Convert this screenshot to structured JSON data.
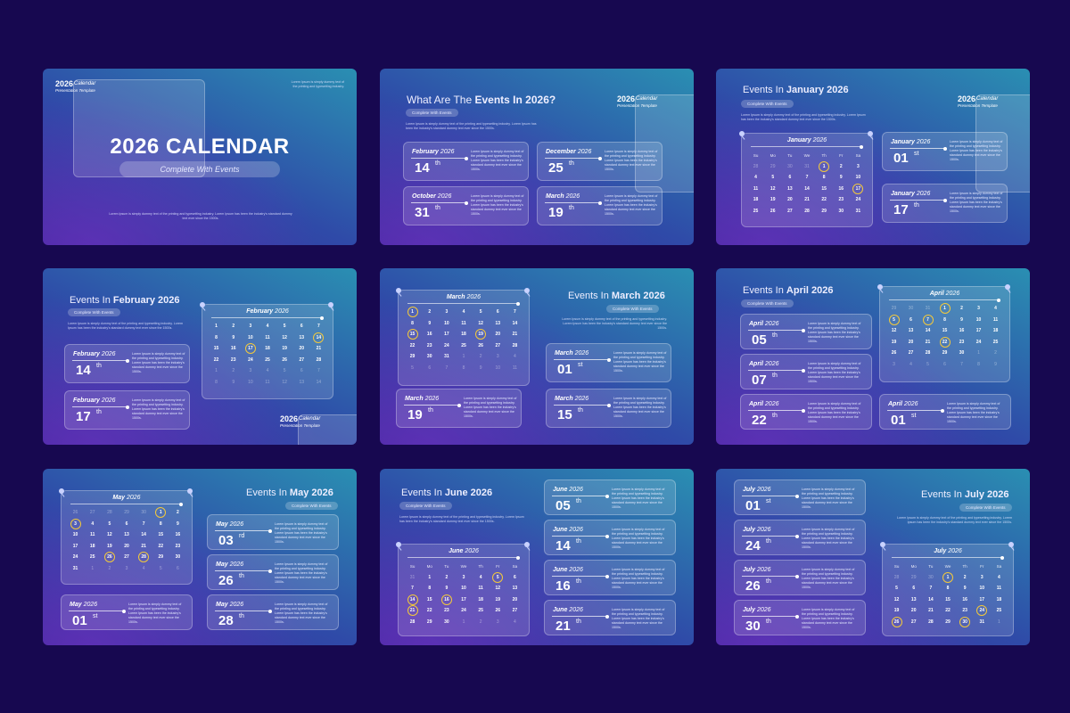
{
  "lorem": "Lorem Ipsum is simply dummy text of the printing and typesetting industry. Lorem Ipsum has been the industry's standard dummy text ever since the 1500s.",
  "brand": {
    "year": "2026",
    "calendar": "Calendar",
    "sub": "Presentation Template"
  },
  "subtitle": "Complete With Events",
  "weekdays": [
    "Su",
    "Mo",
    "Tu",
    "We",
    "Th",
    "Fr",
    "Sa"
  ],
  "cover": {
    "title": "2026 CALENDAR",
    "pill": "Complete With Events",
    "top_text": "Lorem Ipsum is simply dummy text of the printing and typesetting industry."
  },
  "overview": {
    "title_a": "What Are The ",
    "title_b": "Events In 2026?",
    "pill": "Complete With Events",
    "cards": [
      {
        "month": "February",
        "year": "2026",
        "day": "14",
        "suffix": "th"
      },
      {
        "month": "December",
        "year": "2026",
        "day": "25",
        "suffix": "th"
      },
      {
        "month": "October",
        "year": "2026",
        "day": "31",
        "suffix": "th"
      },
      {
        "month": "March",
        "year": "2026",
        "day": "19",
        "suffix": "th"
      }
    ]
  },
  "months": {
    "jan": {
      "title_a": "Events In ",
      "title_b": "January 2026",
      "name": "January",
      "year": "2026",
      "cards": [
        {
          "day": "01",
          "suffix": "st"
        },
        {
          "day": "17",
          "suffix": "th"
        }
      ]
    },
    "feb": {
      "title_a": "Events In ",
      "title_b": "February 2026",
      "name": "February",
      "year": "2026",
      "cards": [
        {
          "day": "14",
          "suffix": "th"
        },
        {
          "day": "17",
          "suffix": "th"
        }
      ]
    },
    "mar": {
      "title_a": "Events In ",
      "title_b": "March 2026",
      "name": "March",
      "year": "2026",
      "cards": [
        {
          "day": "01",
          "suffix": "st"
        },
        {
          "day": "19",
          "suffix": "th"
        },
        {
          "day": "15",
          "suffix": "th"
        }
      ]
    },
    "apr": {
      "title_a": "Events In ",
      "title_b": "April 2026",
      "name": "April",
      "year": "2026",
      "cards": [
        {
          "day": "05",
          "suffix": "th"
        },
        {
          "day": "07",
          "suffix": "th"
        },
        {
          "day": "22",
          "suffix": "th"
        },
        {
          "day": "01",
          "suffix": "st"
        }
      ]
    },
    "may": {
      "title_a": "Events In ",
      "title_b": "May 2026",
      "name": "May",
      "year": "2026",
      "cards": [
        {
          "day": "03",
          "suffix": "rd"
        },
        {
          "day": "26",
          "suffix": "th"
        },
        {
          "day": "28",
          "suffix": "th"
        },
        {
          "day": "01",
          "suffix": "st"
        }
      ]
    },
    "jun": {
      "title_a": "Events In ",
      "title_b": "June 2026",
      "name": "June",
      "year": "2026",
      "cards": [
        {
          "day": "05",
          "suffix": "th"
        },
        {
          "day": "14",
          "suffix": "th"
        },
        {
          "day": "16",
          "suffix": "th"
        },
        {
          "day": "21",
          "suffix": "th"
        }
      ]
    },
    "jul": {
      "title_a": "Events In ",
      "title_b": "July 2026",
      "name": "July",
      "year": "2026",
      "cards": [
        {
          "day": "01",
          "suffix": "st"
        },
        {
          "day": "24",
          "suffix": "th"
        },
        {
          "day": "26",
          "suffix": "th"
        },
        {
          "day": "30",
          "suffix": "th"
        }
      ]
    }
  },
  "calendars": {
    "jan": {
      "cells": [
        "28",
        "29",
        "30",
        "31",
        "1",
        "2",
        "3",
        "4",
        "5",
        "6",
        "7",
        "8",
        "9",
        "10",
        "11",
        "12",
        "13",
        "14",
        "15",
        "16",
        "17",
        "18",
        "19",
        "20",
        "21",
        "22",
        "23",
        "24",
        "25",
        "26",
        "27",
        "28",
        "29",
        "30",
        "31"
      ],
      "dim": [
        0,
        1,
        2,
        3
      ],
      "hl": [
        4,
        20
      ]
    },
    "feb": {
      "cells": [
        "1",
        "2",
        "3",
        "4",
        "5",
        "6",
        "7",
        "8",
        "9",
        "10",
        "11",
        "12",
        "13",
        "14",
        "15",
        "16",
        "17",
        "18",
        "19",
        "20",
        "21",
        "22",
        "23",
        "24",
        "25",
        "26",
        "27",
        "28",
        "1",
        "2",
        "3",
        "4",
        "5",
        "6",
        "7",
        "8",
        "9",
        "10",
        "11",
        "12",
        "13",
        "14"
      ],
      "dim": [
        28,
        29,
        30,
        31,
        32,
        33,
        34,
        35,
        36,
        37,
        38,
        39,
        40,
        41
      ],
      "hl": [
        13,
        16
      ]
    },
    "mar": {
      "cells": [
        "1",
        "2",
        "3",
        "4",
        "5",
        "6",
        "7",
        "8",
        "9",
        "10",
        "11",
        "12",
        "13",
        "14",
        "15",
        "16",
        "17",
        "18",
        "19",
        "20",
        "21",
        "22",
        "23",
        "24",
        "25",
        "26",
        "27",
        "28",
        "29",
        "30",
        "31",
        "1",
        "2",
        "3",
        "4",
        "5",
        "6",
        "7",
        "8",
        "9",
        "10",
        "11"
      ],
      "dim": [
        31,
        32,
        33,
        34,
        35,
        36,
        37,
        38,
        39,
        40,
        41
      ],
      "hl": [
        0,
        14,
        18
      ]
    },
    "apr": {
      "cells": [
        "29",
        "30",
        "31",
        "1",
        "2",
        "3",
        "4",
        "5",
        "6",
        "7",
        "8",
        "9",
        "10",
        "11",
        "12",
        "13",
        "14",
        "15",
        "16",
        "17",
        "18",
        "19",
        "20",
        "21",
        "22",
        "23",
        "24",
        "25",
        "26",
        "27",
        "28",
        "29",
        "30",
        "1",
        "2",
        "3",
        "4",
        "5",
        "6",
        "7",
        "8",
        "9"
      ],
      "dim": [
        0,
        1,
        2,
        33,
        34,
        35,
        36,
        37,
        38,
        39,
        40,
        41
      ],
      "hl": [
        3,
        7,
        9,
        24
      ]
    },
    "may": {
      "cells": [
        "26",
        "27",
        "28",
        "29",
        "30",
        "1",
        "2",
        "3",
        "4",
        "5",
        "6",
        "7",
        "8",
        "9",
        "10",
        "11",
        "12",
        "13",
        "14",
        "15",
        "16",
        "17",
        "18",
        "19",
        "20",
        "21",
        "22",
        "23",
        "24",
        "25",
        "26",
        "27",
        "28",
        "29",
        "30",
        "31",
        "1",
        "2",
        "3",
        "4",
        "5",
        "6"
      ],
      "dim": [
        0,
        1,
        2,
        3,
        4,
        36,
        37,
        38,
        39,
        40,
        41
      ],
      "hl": [
        5,
        7,
        30,
        32
      ]
    },
    "jun": {
      "cells": [
        "31",
        "1",
        "2",
        "3",
        "4",
        "5",
        "6",
        "7",
        "8",
        "9",
        "10",
        "11",
        "12",
        "13",
        "14",
        "15",
        "16",
        "17",
        "18",
        "19",
        "20",
        "21",
        "22",
        "23",
        "24",
        "25",
        "26",
        "27",
        "28",
        "29",
        "30",
        "1",
        "2",
        "3",
        "4"
      ],
      "dim": [
        0,
        31,
        32,
        33,
        34
      ],
      "hl": [
        5,
        14,
        16,
        21
      ]
    },
    "jul": {
      "cells": [
        "28",
        "29",
        "30",
        "1",
        "2",
        "3",
        "4",
        "5",
        "6",
        "7",
        "8",
        "9",
        "10",
        "11",
        "12",
        "13",
        "14",
        "15",
        "16",
        "17",
        "18",
        "19",
        "20",
        "21",
        "22",
        "23",
        "24",
        "25",
        "26",
        "27",
        "28",
        "29",
        "30",
        "31",
        "1"
      ],
      "dim": [
        0,
        1,
        2,
        34
      ],
      "hl": [
        3,
        26,
        28,
        32
      ]
    }
  }
}
